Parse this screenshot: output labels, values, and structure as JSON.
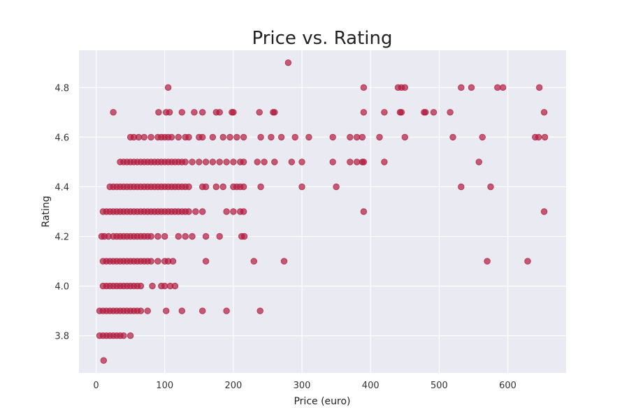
{
  "chart_data": {
    "type": "scatter",
    "title": "Price vs. Rating",
    "xlabel": "Price (euro)",
    "ylabel": "Rating",
    "xlim": [
      -25,
      685
    ],
    "ylim": [
      3.65,
      4.95
    ],
    "xticks": [
      0,
      100,
      200,
      300,
      400,
      500,
      600
    ],
    "yticks": [
      3.8,
      4.0,
      4.2,
      4.4,
      4.6,
      4.8
    ],
    "ytick_labels": [
      "3.8",
      "4.0",
      "4.2",
      "4.4",
      "4.6",
      "4.8"
    ],
    "grid": true,
    "background_color": "#eaeaf2",
    "point_color": "#b01a3c",
    "series": [
      {
        "x": [
          11,
          280,
          105,
          390,
          440,
          445,
          450,
          532,
          547,
          585,
          593,
          646,
          25,
          91,
          102,
          107,
          125,
          143,
          155,
          175,
          180,
          198,
          200,
          238,
          258,
          260,
          390,
          420,
          443,
          445,
          478,
          480,
          492,
          516,
          653,
          50,
          55,
          62,
          70,
          80,
          90,
          95,
          100,
          105,
          110,
          120,
          130,
          135,
          150,
          155,
          170,
          185,
          195,
          205,
          215,
          240,
          255,
          270,
          290,
          310,
          345,
          370,
          380,
          388,
          413,
          450,
          520,
          563,
          640,
          645,
          654,
          35,
          40,
          45,
          50,
          55,
          60,
          65,
          70,
          75,
          80,
          85,
          90,
          95,
          100,
          105,
          110,
          115,
          120,
          125,
          130,
          140,
          150,
          160,
          170,
          180,
          190,
          200,
          210,
          215,
          235,
          245,
          260,
          285,
          300,
          345,
          370,
          380,
          388,
          390,
          420,
          558,
          20,
          25,
          30,
          35,
          40,
          45,
          50,
          55,
          60,
          65,
          70,
          75,
          80,
          85,
          90,
          95,
          100,
          105,
          110,
          115,
          120,
          125,
          130,
          135,
          155,
          160,
          175,
          185,
          200,
          205,
          210,
          215,
          240,
          300,
          350,
          532,
          575,
          10,
          15,
          20,
          25,
          30,
          35,
          40,
          45,
          50,
          55,
          60,
          65,
          70,
          75,
          80,
          85,
          90,
          95,
          100,
          105,
          110,
          115,
          120,
          125,
          130,
          135,
          145,
          155,
          190,
          200,
          210,
          215,
          390,
          653,
          8,
          12,
          18,
          25,
          30,
          35,
          40,
          45,
          50,
          55,
          60,
          65,
          70,
          75,
          80,
          90,
          100,
          120,
          130,
          140,
          160,
          180,
          212,
          216,
          10,
          15,
          20,
          25,
          30,
          35,
          40,
          45,
          50,
          55,
          60,
          65,
          70,
          75,
          80,
          90,
          100,
          105,
          112,
          160,
          230,
          274,
          570,
          629,
          10,
          15,
          20,
          25,
          30,
          35,
          40,
          45,
          50,
          55,
          60,
          65,
          82,
          95,
          100,
          108,
          115,
          5,
          10,
          15,
          20,
          25,
          30,
          35,
          40,
          45,
          50,
          55,
          60,
          65,
          75,
          102,
          125,
          155,
          190,
          239,
          5,
          10,
          15,
          20,
          25,
          30,
          35,
          40,
          50
        ],
        "y": [
          3.7,
          4.9,
          4.8,
          4.8,
          4.8,
          4.8,
          4.8,
          4.8,
          4.8,
          4.8,
          4.8,
          4.8,
          4.7,
          4.7,
          4.7,
          4.7,
          4.7,
          4.7,
          4.7,
          4.7,
          4.7,
          4.7,
          4.7,
          4.7,
          4.7,
          4.7,
          4.7,
          4.7,
          4.7,
          4.7,
          4.7,
          4.7,
          4.7,
          4.7,
          4.7,
          4.6,
          4.6,
          4.6,
          4.6,
          4.6,
          4.6,
          4.6,
          4.6,
          4.6,
          4.6,
          4.6,
          4.6,
          4.6,
          4.6,
          4.6,
          4.6,
          4.6,
          4.6,
          4.6,
          4.6,
          4.6,
          4.6,
          4.6,
          4.6,
          4.6,
          4.6,
          4.6,
          4.6,
          4.6,
          4.6,
          4.6,
          4.6,
          4.6,
          4.6,
          4.6,
          4.6,
          4.5,
          4.5,
          4.5,
          4.5,
          4.5,
          4.5,
          4.5,
          4.5,
          4.5,
          4.5,
          4.5,
          4.5,
          4.5,
          4.5,
          4.5,
          4.5,
          4.5,
          4.5,
          4.5,
          4.5,
          4.5,
          4.5,
          4.5,
          4.5,
          4.5,
          4.5,
          4.5,
          4.5,
          4.5,
          4.5,
          4.5,
          4.5,
          4.5,
          4.5,
          4.5,
          4.5,
          4.5,
          4.5,
          4.5,
          4.5,
          4.5,
          4.4,
          4.4,
          4.4,
          4.4,
          4.4,
          4.4,
          4.4,
          4.4,
          4.4,
          4.4,
          4.4,
          4.4,
          4.4,
          4.4,
          4.4,
          4.4,
          4.4,
          4.4,
          4.4,
          4.4,
          4.4,
          4.4,
          4.4,
          4.4,
          4.4,
          4.4,
          4.4,
          4.4,
          4.4,
          4.4,
          4.4,
          4.4,
          4.4,
          4.4,
          4.4,
          4.4,
          4.4,
          4.3,
          4.3,
          4.3,
          4.3,
          4.3,
          4.3,
          4.3,
          4.3,
          4.3,
          4.3,
          4.3,
          4.3,
          4.3,
          4.3,
          4.3,
          4.3,
          4.3,
          4.3,
          4.3,
          4.3,
          4.3,
          4.3,
          4.3,
          4.3,
          4.3,
          4.3,
          4.3,
          4.3,
          4.3,
          4.3,
          4.3,
          4.3,
          4.3,
          4.3,
          4.2,
          4.2,
          4.2,
          4.2,
          4.2,
          4.2,
          4.2,
          4.2,
          4.2,
          4.2,
          4.2,
          4.2,
          4.2,
          4.2,
          4.2,
          4.2,
          4.2,
          4.2,
          4.2,
          4.2,
          4.2,
          4.2,
          4.2,
          4.2,
          4.1,
          4.1,
          4.1,
          4.1,
          4.1,
          4.1,
          4.1,
          4.1,
          4.1,
          4.1,
          4.1,
          4.1,
          4.1,
          4.1,
          4.1,
          4.1,
          4.1,
          4.1,
          4.1,
          4.1,
          4.1,
          4.1,
          4.1,
          4.1,
          4.0,
          4.0,
          4.0,
          4.0,
          4.0,
          4.0,
          4.0,
          4.0,
          4.0,
          4.0,
          4.0,
          4.0,
          4.0,
          4.0,
          4.0,
          4.0,
          4.0,
          3.9,
          3.9,
          3.9,
          3.9,
          3.9,
          3.9,
          3.9,
          3.9,
          3.9,
          3.9,
          3.9,
          3.9,
          3.9,
          3.9,
          3.9,
          3.9,
          3.9,
          3.9,
          3.9,
          3.8,
          3.8,
          3.8,
          3.8,
          3.8,
          3.8,
          3.8,
          3.8,
          3.8
        ]
      }
    ]
  }
}
